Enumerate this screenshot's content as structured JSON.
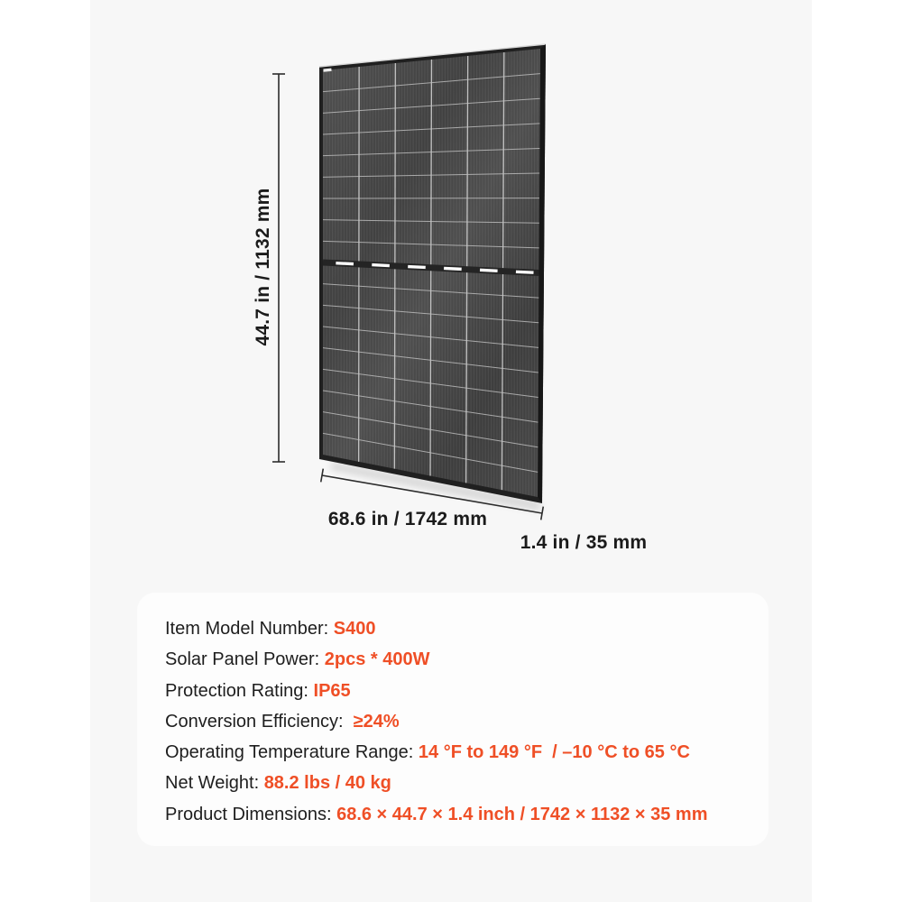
{
  "colors": {
    "accent": "#ef4f26",
    "text": "#1e1e1e",
    "content_bg": "#f7f7f7",
    "card_bg": "#fdfdfd",
    "panel_dark": "#3d3d3d"
  },
  "diagram": {
    "height_label": "44.7 in / 1132 mm",
    "width_label": "68.6 in / 1742 mm",
    "depth_label": "1.4 in / 35 mm"
  },
  "specs": {
    "rows": [
      {
        "label": "Item Model Number: ",
        "value": "S400"
      },
      {
        "label": "Solar Panel Power: ",
        "value": "2pcs * 400W"
      },
      {
        "label": "Protection Rating: ",
        "value": "IP65"
      },
      {
        "label": "Conversion Efficiency:  ",
        "value": "≥24%"
      },
      {
        "label": "Operating Temperature Range: ",
        "value": "14 °F to 149 °F  / –10 °C to 65 °C"
      },
      {
        "label": "Net Weight: ",
        "value": "88.2 lbs / 40 kg"
      },
      {
        "label": "Product Dimensions: ",
        "value": "68.6 × 44.7 × 1.4 inch / 1742 × 1132 × 35 mm"
      }
    ]
  }
}
